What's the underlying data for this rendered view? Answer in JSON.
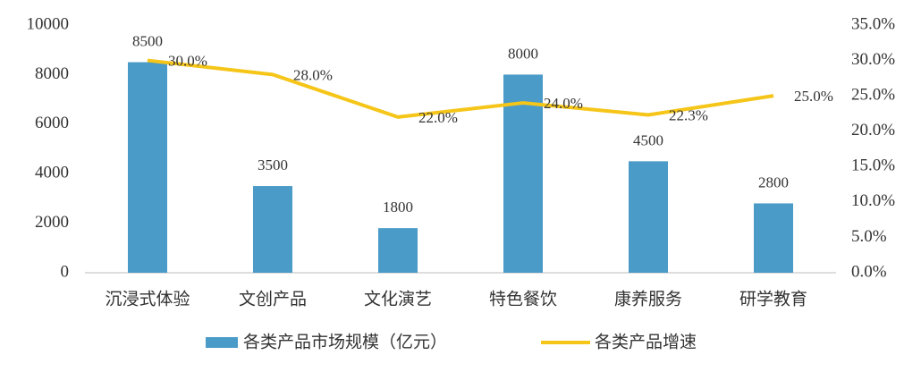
{
  "chart_data": {
    "type": "bar",
    "categories": [
      "沉浸式体验",
      "文创产品",
      "文化演艺",
      "特色餐饮",
      "康养服务",
      "研学教育"
    ],
    "series": [
      {
        "name": "各类产品市场规模（亿元）",
        "color": "#4a9bc8",
        "values": [
          8500,
          3500,
          1800,
          8000,
          4500,
          2800
        ]
      },
      {
        "name": "各类产品增速",
        "color": "#f5c518",
        "type": "line",
        "axis": "y2",
        "values": [
          30.0,
          28.0,
          22.0,
          24.0,
          22.3,
          25.0
        ],
        "value_labels": [
          "30.0%",
          "28.0%",
          "22.0%",
          "24.0%",
          "22.3%",
          "25.0%"
        ]
      }
    ],
    "ylim": [
      0,
      10000
    ],
    "yticks": [
      0,
      2000,
      4000,
      6000,
      8000,
      10000
    ],
    "y2lim": [
      0,
      35
    ],
    "y2ticks": [
      {
        "value": 0,
        "label": "0.0%"
      },
      {
        "value": 5,
        "label": "5.0%"
      },
      {
        "value": 10,
        "label": "10.0%"
      },
      {
        "value": 15,
        "label": "15.0%"
      },
      {
        "value": 20,
        "label": "20.0%"
      },
      {
        "value": 25,
        "label": "25.0%"
      },
      {
        "value": 30,
        "label": "30.0%"
      },
      {
        "value": 35,
        "label": "35.0%"
      }
    ],
    "grid": false,
    "legend": "bottom"
  }
}
